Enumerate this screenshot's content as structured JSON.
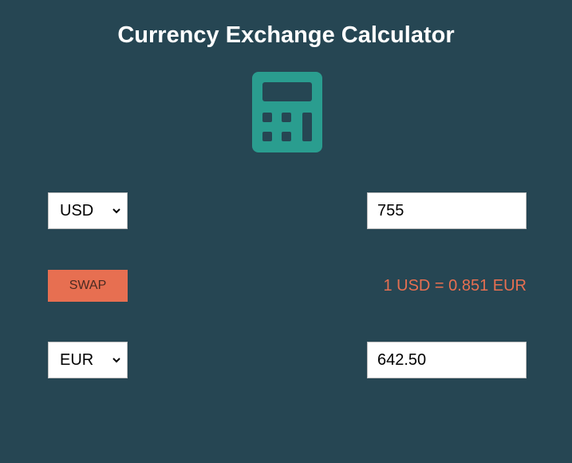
{
  "title": "Currency Exchange Calculator",
  "icon": "calculator-icon",
  "colors": {
    "background": "#264653",
    "accent": "#2a9d8f",
    "swap_button": "#e76f51",
    "rate_text": "#e76f51"
  },
  "from": {
    "currency": "USD",
    "amount": "755"
  },
  "to": {
    "currency": "EUR",
    "amount": "642.50"
  },
  "swap_label": "SWAP",
  "rate_text": "1 USD = 0.851 EUR"
}
